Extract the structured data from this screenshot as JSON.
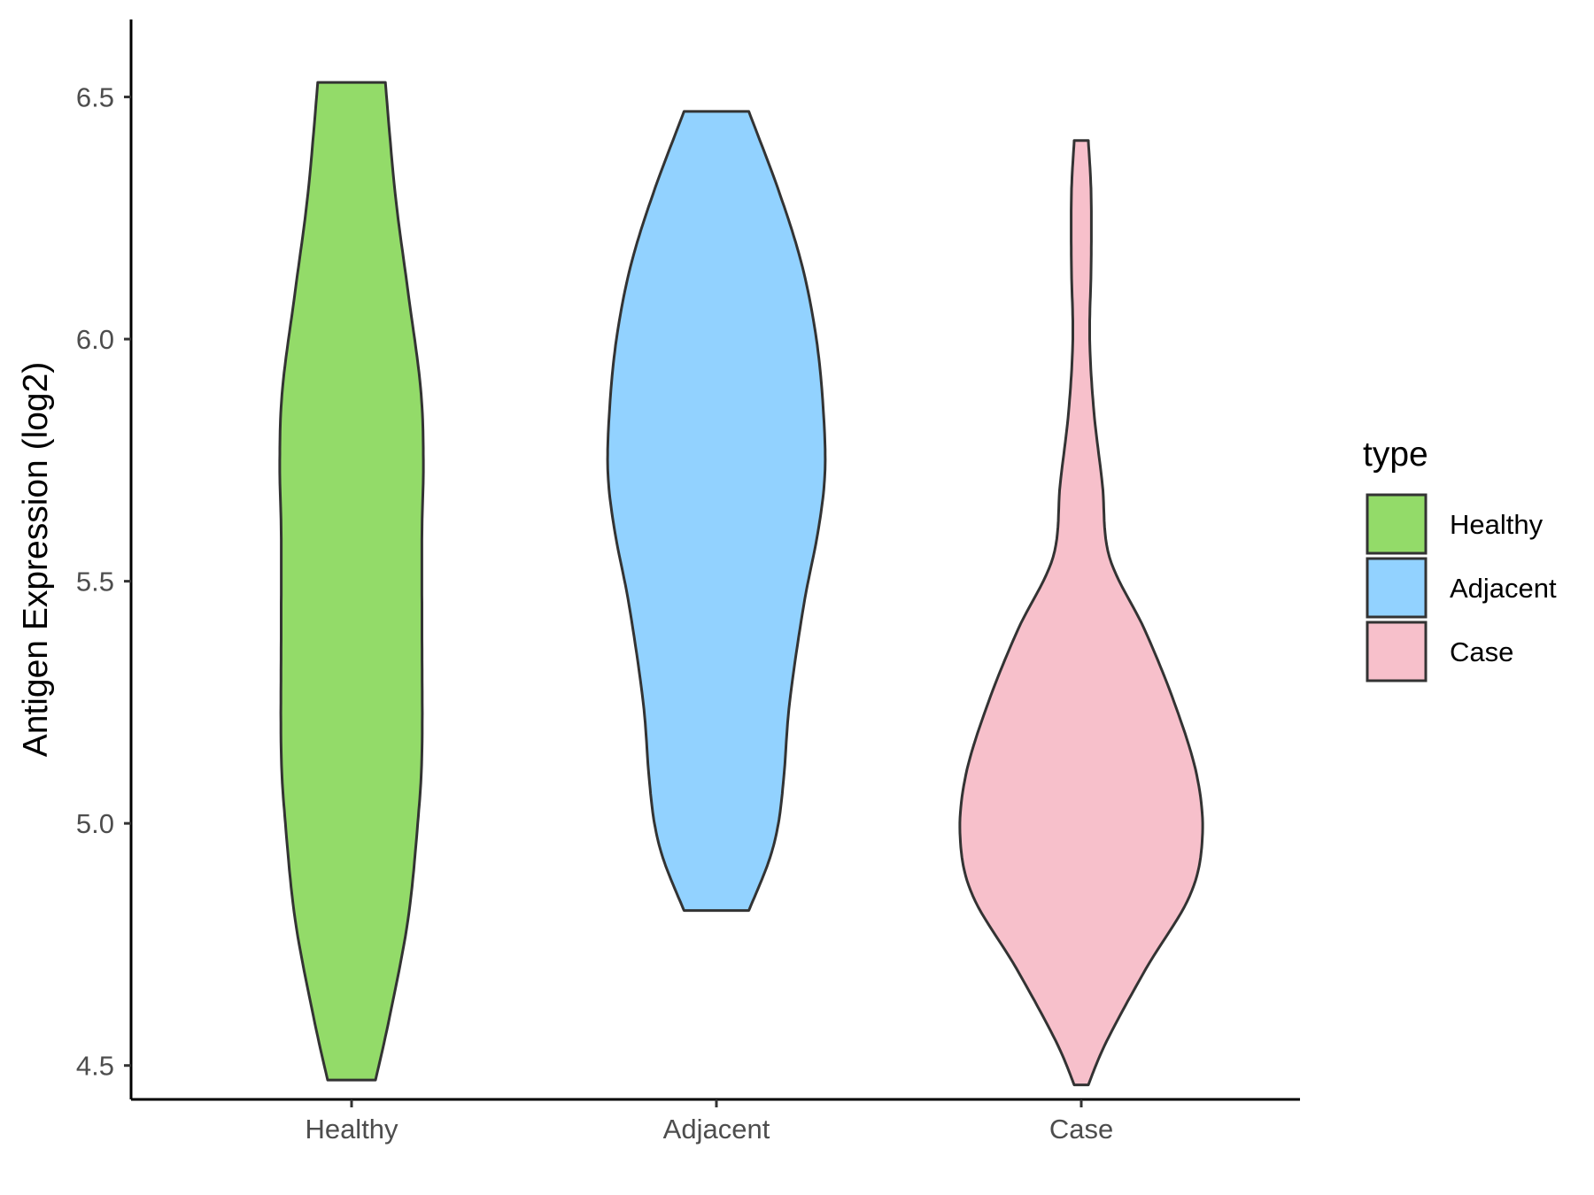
{
  "chart_data": {
    "type": "violin",
    "title": "",
    "xlabel": "",
    "ylabel": "Antigen Expression (log2)",
    "ylim": [
      4.43,
      6.66
    ],
    "yticks": [
      4.5,
      5.0,
      5.5,
      6.0,
      6.5
    ],
    "ytick_labels": [
      "4.5",
      "5.0",
      "5.5",
      "6.0",
      "6.5"
    ],
    "categories": [
      "Healthy",
      "Adjacent",
      "Case"
    ],
    "legend": {
      "title": "type",
      "position": "right",
      "entries": [
        "Healthy",
        "Adjacent",
        "Case"
      ]
    },
    "grid": false,
    "outline_color": "#333333",
    "series": [
      {
        "name": "Healthy",
        "color": "#93DB69",
        "min": 4.47,
        "max": 6.53,
        "density_profile": [
          [
            4.47,
            0.17
          ],
          [
            4.6,
            0.27
          ],
          [
            4.8,
            0.4
          ],
          [
            5.0,
            0.47
          ],
          [
            5.15,
            0.5
          ],
          [
            5.4,
            0.5
          ],
          [
            5.6,
            0.5
          ],
          [
            5.75,
            0.51
          ],
          [
            5.9,
            0.49
          ],
          [
            6.1,
            0.4
          ],
          [
            6.3,
            0.31
          ],
          [
            6.53,
            0.24
          ]
        ]
      },
      {
        "name": "Adjacent",
        "color": "#92D2FF",
        "min": 4.82,
        "max": 6.47,
        "density_profile": [
          [
            4.82,
            0.23
          ],
          [
            4.92,
            0.37
          ],
          [
            5.0,
            0.44
          ],
          [
            5.1,
            0.48
          ],
          [
            5.25,
            0.52
          ],
          [
            5.45,
            0.62
          ],
          [
            5.6,
            0.72
          ],
          [
            5.72,
            0.77
          ],
          [
            5.85,
            0.76
          ],
          [
            6.0,
            0.71
          ],
          [
            6.15,
            0.61
          ],
          [
            6.3,
            0.45
          ],
          [
            6.47,
            0.23
          ]
        ]
      },
      {
        "name": "Case",
        "color": "#F7C0CB",
        "min": 4.46,
        "max": 6.41,
        "density_profile": [
          [
            4.46,
            0.05
          ],
          [
            4.55,
            0.18
          ],
          [
            4.7,
            0.46
          ],
          [
            4.85,
            0.77
          ],
          [
            4.97,
            0.86
          ],
          [
            5.1,
            0.82
          ],
          [
            5.25,
            0.66
          ],
          [
            5.4,
            0.45
          ],
          [
            5.55,
            0.2
          ],
          [
            5.7,
            0.15
          ],
          [
            5.85,
            0.09
          ],
          [
            6.0,
            0.06
          ],
          [
            6.15,
            0.07
          ],
          [
            6.3,
            0.07
          ],
          [
            6.41,
            0.05
          ]
        ]
      }
    ]
  }
}
